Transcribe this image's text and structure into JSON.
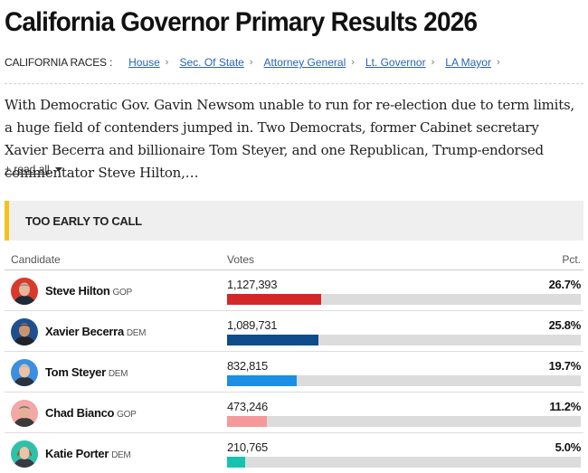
{
  "page": {
    "title": "California Governor Primary Results 2026"
  },
  "races": {
    "label": "CALIFORNIA RACES :",
    "links": [
      "House",
      "Sec. Of State",
      "Attorney General",
      "Lt. Governor",
      "LA Mayor"
    ]
  },
  "summary": {
    "text": "With Democratic Gov. Gavin Newsom unable to run for re-election due to term limits, a huge field of contenders jumped in. Two Democrats, former Cabinet secretary Xavier Becerra and billionaire Tom Steyer, and one Republican, Trump-endorsed commentator Steve Hilton,…",
    "read_all": "+ read all"
  },
  "status": {
    "text": "TOO EARLY TO CALL",
    "accent_color": "#f5c21b"
  },
  "table": {
    "headers": {
      "candidate": "Candidate",
      "votes": "Votes",
      "pct": "Pct."
    },
    "rows": [
      {
        "name": "Steve Hilton",
        "party": "GOP",
        "votes": "1,127,393",
        "pct": "26.7%",
        "share": 26.7,
        "color": "#d62728",
        "avatar": "steve-hilton-avatar"
      },
      {
        "name": "Xavier Becerra",
        "party": "DEM",
        "votes": "1,089,731",
        "pct": "25.8%",
        "share": 25.8,
        "color": "#0f4c8c",
        "avatar": "xavier-becerra-avatar"
      },
      {
        "name": "Tom Steyer",
        "party": "DEM",
        "votes": "832,815",
        "pct": "19.7%",
        "share": 19.7,
        "color": "#1a8fe3",
        "avatar": "tom-steyer-avatar"
      },
      {
        "name": "Chad Bianco",
        "party": "GOP",
        "votes": "473,246",
        "pct": "11.2%",
        "share": 11.2,
        "color": "#f5999b",
        "avatar": "chad-bianco-avatar"
      },
      {
        "name": "Katie Porter",
        "party": "DEM",
        "votes": "210,765",
        "pct": "5.0%",
        "share": 5.0,
        "color": "#15c3b0",
        "avatar": "katie-porter-avatar"
      }
    ]
  }
}
